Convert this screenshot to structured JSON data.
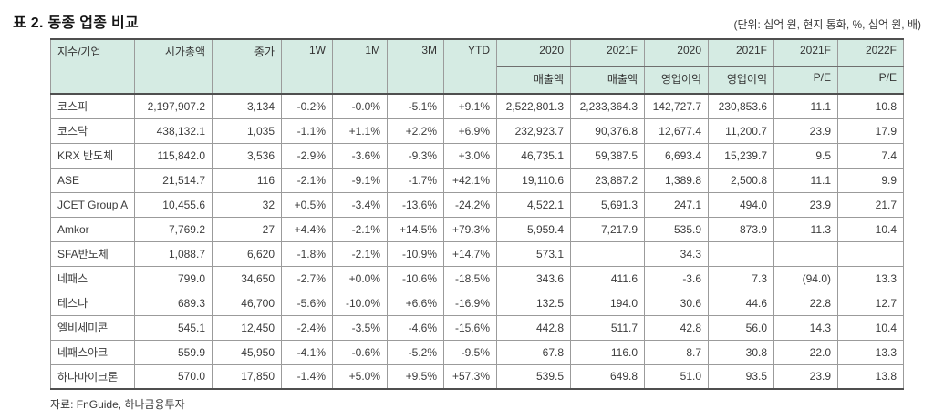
{
  "title": "표 2. 동종 업종 비교",
  "unit_note": "(단위: 십억 원, 현지 통화, %, 십억 원, 배)",
  "source": "자료: FnGuide, 하나금융투자",
  "colors": {
    "header_bg": "#d5ebe3",
    "grid_line": "#9b9b9b",
    "strong_line": "#4f4f4f"
  },
  "table": {
    "col_headers": [
      "지수/기업",
      "시가총액",
      "종가",
      "1W",
      "1M",
      "3M",
      "YTD"
    ],
    "year_headers": [
      "2020",
      "2021F",
      "2020",
      "2021F",
      "2021F",
      "2022F"
    ],
    "metric_headers": [
      "매출액",
      "매출액",
      "영업이익",
      "영업이익",
      "P/E",
      "P/E"
    ],
    "rows": [
      {
        "name": "코스피",
        "cells": [
          "2,197,907.2",
          "3,134",
          "-0.2%",
          "-0.0%",
          "-5.1%",
          "+9.1%",
          "2,522,801.3",
          "2,233,364.3",
          "142,727.7",
          "230,853.6",
          "11.1",
          "10.8"
        ]
      },
      {
        "name": "코스닥",
        "cells": [
          "438,132.1",
          "1,035",
          "-1.1%",
          "+1.1%",
          "+2.2%",
          "+6.9%",
          "232,923.7",
          "90,376.8",
          "12,677.4",
          "11,200.7",
          "23.9",
          "17.9"
        ]
      },
      {
        "name": "KRX 반도체",
        "cells": [
          "115,842.0",
          "3,536",
          "-2.9%",
          "-3.6%",
          "-9.3%",
          "+3.0%",
          "46,735.1",
          "59,387.5",
          "6,693.4",
          "15,239.7",
          "9.5",
          "7.4"
        ]
      },
      {
        "name": "ASE",
        "cells": [
          "21,514.7",
          "116",
          "-2.1%",
          "-9.1%",
          "-1.7%",
          "+42.1%",
          "19,110.6",
          "23,887.2",
          "1,389.8",
          "2,500.8",
          "11.1",
          "9.9"
        ]
      },
      {
        "name": "JCET Group A",
        "cells": [
          "10,455.6",
          "32",
          "+0.5%",
          "-3.4%",
          "-13.6%",
          "-24.2%",
          "4,522.1",
          "5,691.3",
          "247.1",
          "494.0",
          "23.9",
          "21.7"
        ]
      },
      {
        "name": "Amkor",
        "cells": [
          "7,769.2",
          "27",
          "+4.4%",
          "-2.1%",
          "+14.5%",
          "+79.3%",
          "5,959.4",
          "7,217.9",
          "535.9",
          "873.9",
          "11.3",
          "10.4"
        ]
      },
      {
        "name": "SFA반도체",
        "cells": [
          "1,088.7",
          "6,620",
          "-1.8%",
          "-2.1%",
          "-10.9%",
          "+14.7%",
          "573.1",
          "",
          "34.3",
          "",
          "",
          ""
        ]
      },
      {
        "name": "네패스",
        "cells": [
          "799.0",
          "34,650",
          "-2.7%",
          "+0.0%",
          "-10.6%",
          "-18.5%",
          "343.6",
          "411.6",
          "-3.6",
          "7.3",
          "(94.0)",
          "13.3"
        ]
      },
      {
        "name": "테스나",
        "cells": [
          "689.3",
          "46,700",
          "-5.6%",
          "-10.0%",
          "+6.6%",
          "-16.9%",
          "132.5",
          "194.0",
          "30.6",
          "44.6",
          "22.8",
          "12.7"
        ]
      },
      {
        "name": "엘비세미콘",
        "cells": [
          "545.1",
          "12,450",
          "-2.4%",
          "-3.5%",
          "-4.6%",
          "-15.6%",
          "442.8",
          "511.7",
          "42.8",
          "56.0",
          "14.3",
          "10.4"
        ]
      },
      {
        "name": "네패스아크",
        "cells": [
          "559.9",
          "45,950",
          "-4.1%",
          "-0.6%",
          "-5.2%",
          "-9.5%",
          "67.8",
          "116.0",
          "8.7",
          "30.8",
          "22.0",
          "13.3"
        ]
      },
      {
        "name": "하나마이크론",
        "cells": [
          "570.0",
          "17,850",
          "-1.4%",
          "+5.0%",
          "+9.5%",
          "+57.3%",
          "539.5",
          "649.8",
          "51.0",
          "93.5",
          "23.9",
          "13.8"
        ]
      }
    ]
  }
}
